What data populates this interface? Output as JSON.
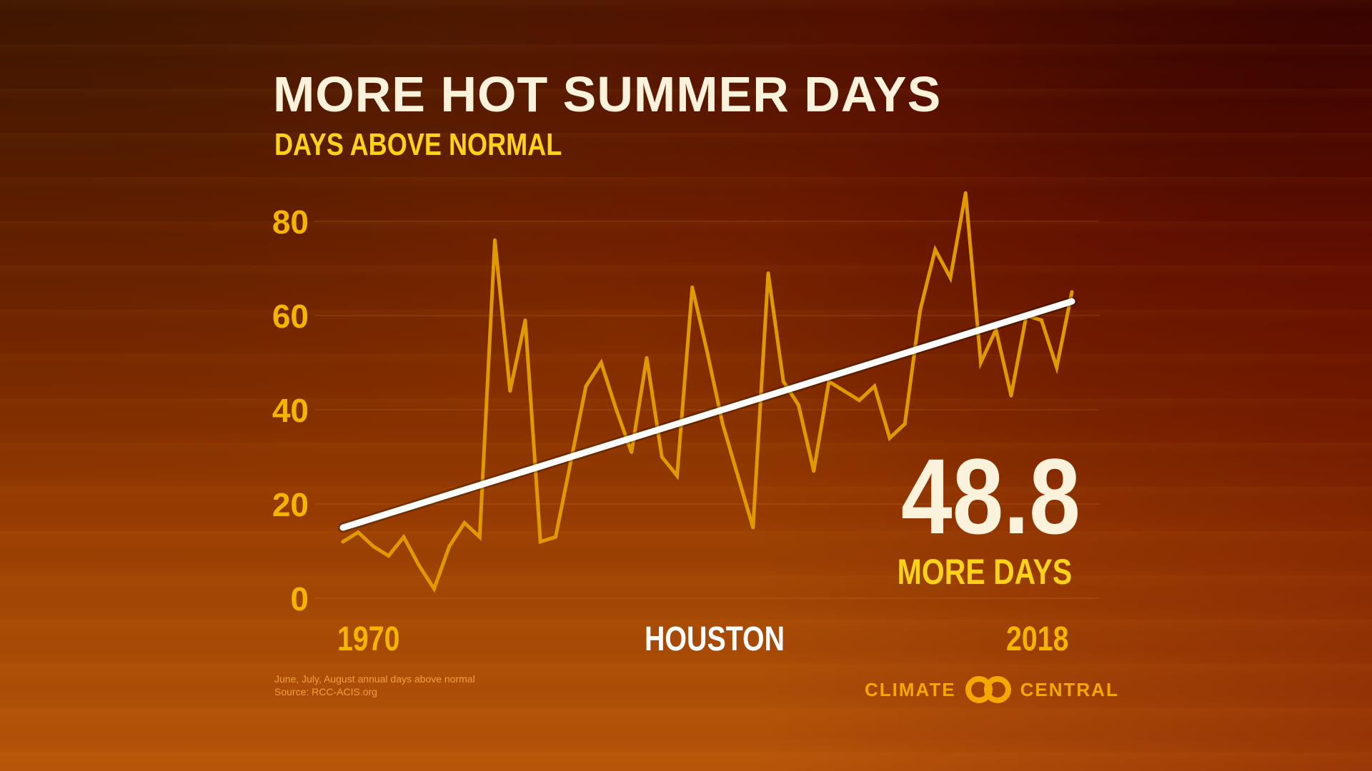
{
  "chart_data": {
    "type": "line",
    "title": "MORE HOT SUMMER DAYS",
    "subtitle": "DAYS ABOVE NORMAL",
    "xlabel": "",
    "ylabel": "",
    "ylim": [
      0,
      80
    ],
    "xlim": [
      1970,
      2018
    ],
    "yticks": [
      "0",
      "20",
      "40",
      "60",
      "80"
    ],
    "x_start_label": "1970",
    "x_end_label": "2018",
    "location": "HOUSTON",
    "grid": true,
    "series": [
      {
        "color": "#e09a00",
        "x": [
          1970,
          1971,
          1972,
          1973,
          1974,
          1975,
          1976,
          1977,
          1978,
          1979,
          1980,
          1981,
          1982,
          1983,
          1984,
          1985,
          1986,
          1987,
          1988,
          1989,
          1990,
          1991,
          1992,
          1993,
          1994,
          1995,
          1996,
          1997,
          1998,
          1999,
          2000,
          2001,
          2002,
          2003,
          2004,
          2005,
          2006,
          2007,
          2008,
          2009,
          2010,
          2011,
          2012,
          2013,
          2014,
          2015,
          2016,
          2017,
          2018
        ],
        "values": [
          12,
          14,
          11,
          9,
          13,
          7,
          2,
          11,
          16,
          13,
          76,
          44,
          59,
          12,
          13,
          29,
          45,
          50,
          40,
          31,
          51,
          30,
          26,
          66,
          52,
          37,
          26,
          15,
          69,
          46,
          41,
          27,
          46,
          44,
          42,
          45,
          34,
          37,
          61,
          74,
          68,
          86,
          50,
          57,
          43,
          60,
          59,
          49,
          65
        ]
      }
    ],
    "trend": {
      "color": "#ffffff",
      "start": {
        "x": 1970,
        "y": 15
      },
      "end": {
        "x": 2018,
        "y": 63
      }
    },
    "highlight_value": "48.8",
    "highlight_label": "MORE DAYS"
  },
  "footnote": {
    "line1": "June, July, August annual days above normal",
    "line2": "Source: RCC-ACIS.org"
  },
  "logo": {
    "left_word": "CLIMATE",
    "right_word": "CENTRAL",
    "icon": "climate-central-rings-icon",
    "color": "#f5a800"
  }
}
